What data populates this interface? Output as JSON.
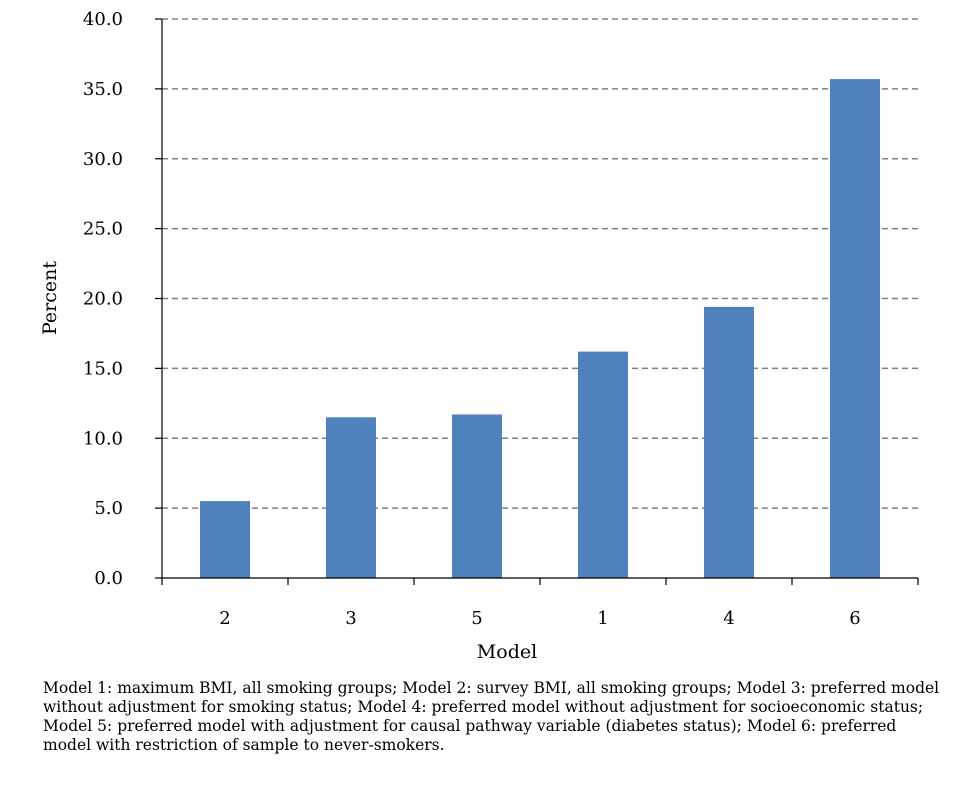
{
  "chart_data": {
    "type": "bar",
    "categories": [
      "2",
      "3",
      "5",
      "1",
      "4",
      "6"
    ],
    "values": [
      5.5,
      11.5,
      11.7,
      16.2,
      19.4,
      35.7
    ],
    "xlabel": "Model",
    "ylabel": "Percent",
    "ylim": [
      0,
      40
    ],
    "yticks": [
      "0.0",
      "5.0",
      "10.0",
      "15.0",
      "20.0",
      "25.0",
      "30.0",
      "35.0",
      "40.0"
    ],
    "grid": "horizontal-dashed",
    "legend": "none",
    "bar_color": "#4f81bd",
    "grid_color": "#808080"
  },
  "caption": "Model 1: maximum BMI, all smoking groups; Model 2: survey BMI, all smoking groups; Model 3: preferred model without adjustment for smoking status; Model 4: preferred model without adjustment for socioeconomic status; Model 5: preferred model with adjustment for causal pathway variable (diabetes status); Model 6: preferred model with restriction of sample to never-smokers."
}
